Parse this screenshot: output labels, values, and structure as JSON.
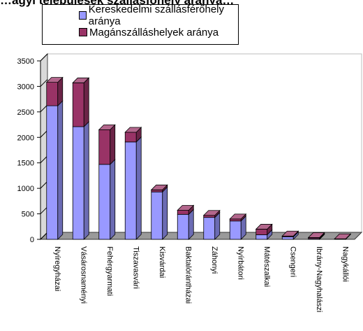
{
  "title_fragment": "…agyi települések szállásfőhely aránya…",
  "chart_data": {
    "type": "bar",
    "stacked": true,
    "three_d": true,
    "categories": [
      "Nyíregyházai",
      "Vásárosnaményi",
      "Fehérgyarmati",
      "Tiszavasvári",
      "Kisvárdai",
      "Baktalórántházai",
      "Záhonyi",
      "Nyírbátori",
      "Mátészalkai",
      "Csengeri",
      "Ibrány-Nagyhalászi",
      "Nagykállói"
    ],
    "series": [
      {
        "name": "Kereskedelmi szállásférőhely aránya",
        "color": "#9999ff",
        "values": [
          2620,
          2210,
          1470,
          1910,
          930,
          490,
          430,
          360,
          90,
          50,
          15,
          0
        ]
      },
      {
        "name": "Magánszálláshelyek aránya",
        "color": "#993366",
        "values": [
          460,
          860,
          680,
          190,
          40,
          80,
          40,
          40,
          110,
          15,
          20,
          10
        ]
      }
    ],
    "y_ticks": [
      0,
      500,
      1000,
      1500,
      2000,
      2500,
      3000,
      3500
    ],
    "ylim": [
      0,
      3500
    ],
    "grid": false,
    "legend_position": "top"
  }
}
